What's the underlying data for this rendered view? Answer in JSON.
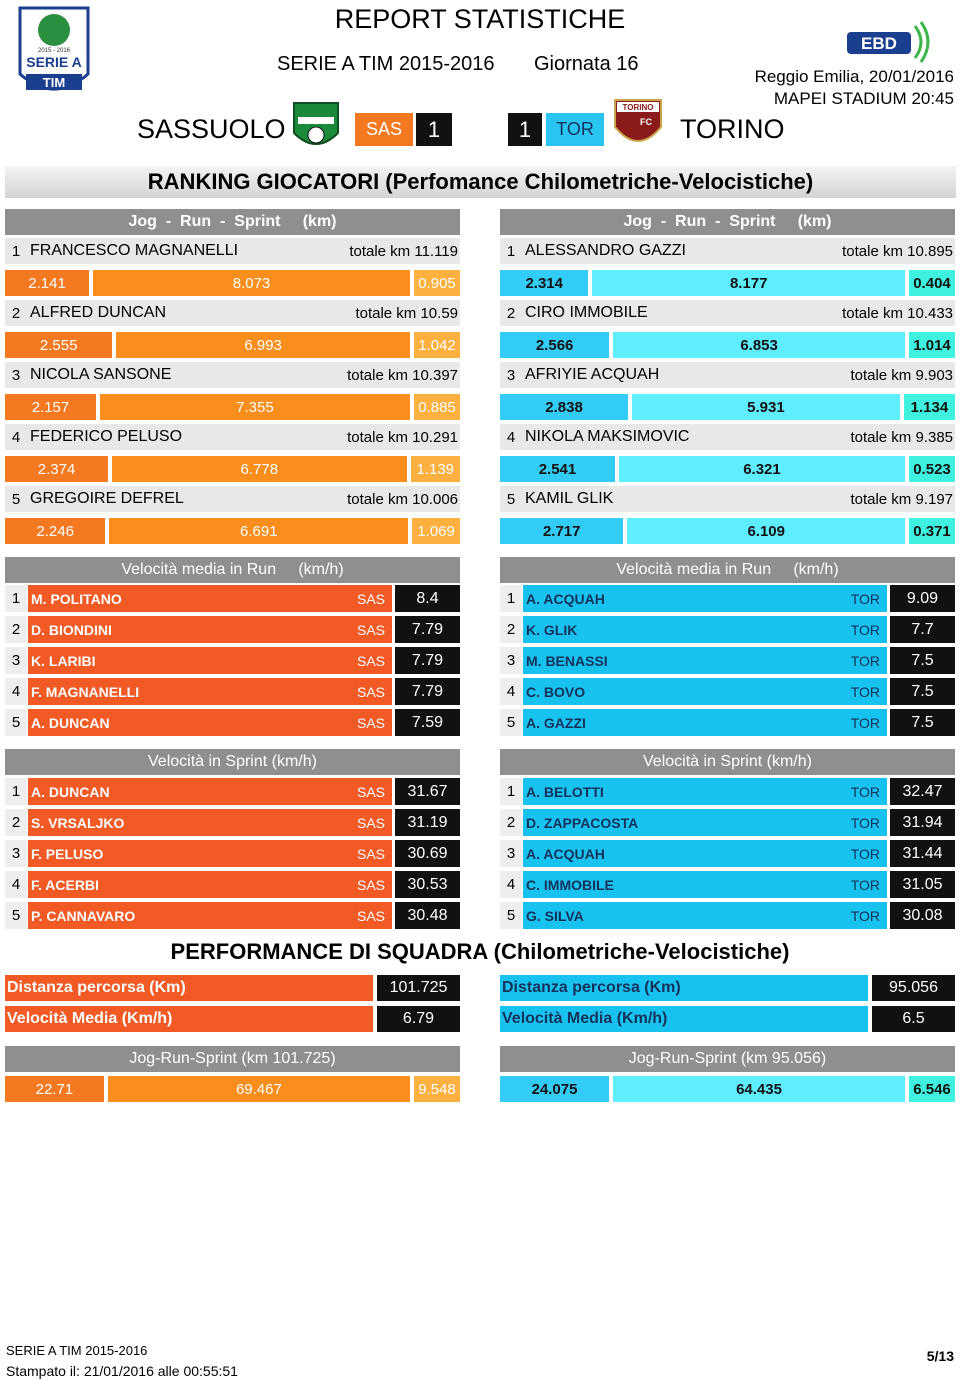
{
  "header": {
    "title": "REPORT STATISTICHE",
    "competition": "SERIE A TIM 2015-2016",
    "round": "Giornata 16",
    "place_date": "Reggio Emilia, 20/01/2016",
    "venue": "MAPEI STADIUM 20:45",
    "home": {
      "name": "SASSUOLO",
      "code": "SAS",
      "score": "1"
    },
    "away": {
      "name": "TORINO",
      "code": "TOR",
      "score": "1"
    }
  },
  "logos": {
    "league_season": "2015 - 2016",
    "league_name": "SERIE A",
    "league_sponsor": "TIM",
    "away_crest": "TORINO",
    "away_crest_sub": "FC",
    "broadcaster": "EBD"
  },
  "ranking": {
    "title": "RANKING GIOCATORI (Perfomance Chilometriche-Velocistiche)",
    "home": {
      "header": "Jog  -  Run  -  Sprint     (km)",
      "players": [
        {
          "rank": 1,
          "name": "FRANCESCO MAGNANELLI",
          "total": "totale km 11.119",
          "jog": 2.141,
          "run": 8.073,
          "sprint": 0.905
        },
        {
          "rank": 2,
          "name": "ALFRED DUNCAN",
          "total": "totale km 10.59",
          "jog": 2.555,
          "run": 6.993,
          "sprint": 1.042
        },
        {
          "rank": 3,
          "name": "NICOLA SANSONE",
          "total": "totale km 10.397",
          "jog": 2.157,
          "run": 7.355,
          "sprint": 0.885
        },
        {
          "rank": 4,
          "name": "FEDERICO PELUSO",
          "total": "totale km 10.291",
          "jog": 2.374,
          "run": 6.778,
          "sprint": 1.139
        },
        {
          "rank": 5,
          "name": "GREGOIRE DEFREL",
          "total": "totale km 10.006",
          "jog": 2.246,
          "run": 6.691,
          "sprint": 1.069
        }
      ]
    },
    "away": {
      "header": "Jog  -  Run  -  Sprint     (km)",
      "players": [
        {
          "rank": 1,
          "name": "ALESSANDRO GAZZI",
          "total": "totale km 10.895",
          "jog": 2.314,
          "run": 8.177,
          "sprint": 0.404
        },
        {
          "rank": 2,
          "name": "CIRO IMMOBILE",
          "total": "totale km 10.433",
          "jog": 2.566,
          "run": 6.853,
          "sprint": 1.014
        },
        {
          "rank": 3,
          "name": "AFRIYIE ACQUAH",
          "total": "totale km 9.903",
          "jog": 2.838,
          "run": 5.931,
          "sprint": 1.134
        },
        {
          "rank": 4,
          "name": "NIKOLA MAKSIMOVIC",
          "total": "totale km 9.385",
          "jog": 2.541,
          "run": 6.321,
          "sprint": 0.523
        },
        {
          "rank": 5,
          "name": "KAMIL GLIK",
          "total": "totale km 9.197",
          "jog": 2.717,
          "run": 6.109,
          "sprint": 0.371
        }
      ]
    }
  },
  "run_speed": {
    "home": {
      "header": "Velocità media in Run     (km/h)",
      "rows": [
        {
          "rank": 1,
          "name": "M. POLITANO",
          "team": "SAS",
          "value": 8.4
        },
        {
          "rank": 2,
          "name": "D. BIONDINI",
          "team": "SAS",
          "value": 7.79
        },
        {
          "rank": 3,
          "name": "K. LARIBI",
          "team": "SAS",
          "value": 7.79
        },
        {
          "rank": 4,
          "name": "F. MAGNANELLI",
          "team": "SAS",
          "value": 7.79
        },
        {
          "rank": 5,
          "name": "A. DUNCAN",
          "team": "SAS",
          "value": 7.59
        }
      ]
    },
    "away": {
      "header": "Velocità media in Run     (km/h)",
      "rows": [
        {
          "rank": 1,
          "name": "A. ACQUAH",
          "team": "TOR",
          "value": 9.09
        },
        {
          "rank": 2,
          "name": "K. GLIK",
          "team": "TOR",
          "value": 7.7
        },
        {
          "rank": 3,
          "name": "M. BENASSI",
          "team": "TOR",
          "value": 7.5
        },
        {
          "rank": 4,
          "name": "C. BOVO",
          "team": "TOR",
          "value": 7.5
        },
        {
          "rank": 5,
          "name": "A. GAZZI",
          "team": "TOR",
          "value": 7.5
        }
      ]
    }
  },
  "sprint_speed": {
    "home": {
      "header": "Velocità in Sprint (km/h)",
      "rows": [
        {
          "rank": 1,
          "name": "A. DUNCAN",
          "team": "SAS",
          "value": 31.67
        },
        {
          "rank": 2,
          "name": "S. VRSALJKO",
          "team": "SAS",
          "value": 31.19
        },
        {
          "rank": 3,
          "name": "F. PELUSO",
          "team": "SAS",
          "value": 30.69
        },
        {
          "rank": 4,
          "name": "F. ACERBI",
          "team": "SAS",
          "value": 30.53
        },
        {
          "rank": 5,
          "name": "P. CANNAVARO",
          "team": "SAS",
          "value": 30.48
        }
      ]
    },
    "away": {
      "header": "Velocità in Sprint (km/h)",
      "rows": [
        {
          "rank": 1,
          "name": "A. BELOTTI",
          "team": "TOR",
          "value": 32.47
        },
        {
          "rank": 2,
          "name": "D. ZAPPACOSTA",
          "team": "TOR",
          "value": 31.94
        },
        {
          "rank": 3,
          "name": "A. ACQUAH",
          "team": "TOR",
          "value": 31.44
        },
        {
          "rank": 4,
          "name": "C. IMMOBILE",
          "team": "TOR",
          "value": 31.05
        },
        {
          "rank": 5,
          "name": "G. SILVA",
          "team": "TOR",
          "value": 30.08
        }
      ]
    }
  },
  "team": {
    "title": "PERFORMANCE DI SQUADRA (Chilometriche-Velocistiche)",
    "home": {
      "rows": [
        {
          "label": "Distanza percorsa (Km)",
          "value": 101.725
        },
        {
          "label": "Velocità Media (Km/h)",
          "value": 6.79
        }
      ],
      "jrs_header": "Jog-Run-Sprint (km 101.725)",
      "jog": 22.71,
      "run": 69.467,
      "sprint": 9.548
    },
    "away": {
      "rows": [
        {
          "label": "Distanza percorsa (Km)",
          "value": 95.056
        },
        {
          "label": "Velocità Media (Km/h)",
          "value": 6.5
        }
      ],
      "jrs_header": "Jog-Run-Sprint (km 95.056)",
      "jog": 24.075,
      "run": 64.435,
      "sprint": 6.546
    }
  },
  "footer": {
    "competition": "SERIE A TIM 2015-2016",
    "printed": "Stampato il: 21/01/2016 alle 00:55:51",
    "page": "5/13"
  }
}
